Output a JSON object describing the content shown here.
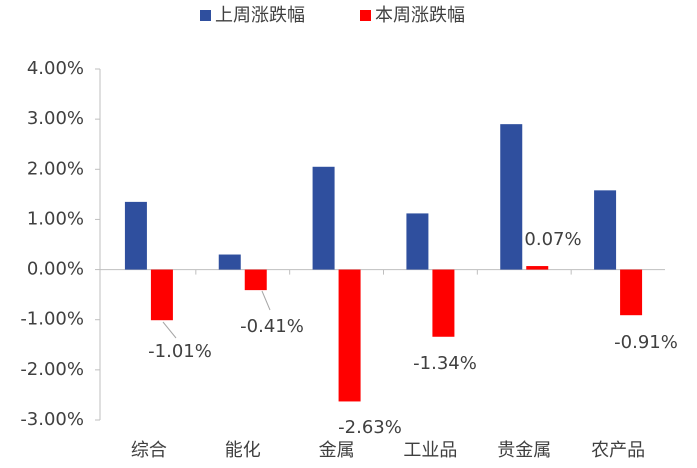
{
  "chart_data": {
    "type": "bar",
    "categories": [
      "综合",
      "能化",
      "金属",
      "工业品",
      "贵金属",
      "农产品"
    ],
    "series": [
      {
        "name": "上周涨跌幅",
        "color": "#2f4f9e",
        "values": [
          1.35,
          0.3,
          2.05,
          1.12,
          2.9,
          1.58
        ]
      },
      {
        "name": "本周涨跌幅",
        "color": "#ff0000",
        "values": [
          -1.01,
          -0.41,
          -2.63,
          -1.34,
          0.07,
          -0.91
        ],
        "value_labels": [
          "-1.01%",
          "-0.41%",
          "-2.63%",
          "-1.34%",
          "0.07%",
          "-0.91%"
        ]
      }
    ],
    "ylim": [
      -3,
      4
    ],
    "yticks": [
      {
        "value": -3,
        "label": "-3.00%"
      },
      {
        "value": -2,
        "label": "-2.00%"
      },
      {
        "value": -1,
        "label": "-1.00%"
      },
      {
        "value": 0,
        "label": "0.00%"
      },
      {
        "value": 1,
        "label": "1.00%"
      },
      {
        "value": 2,
        "label": "2.00%"
      },
      {
        "value": 3,
        "label": "3.00%"
      },
      {
        "value": 4,
        "label": "4.00%"
      }
    ],
    "legend": "top"
  }
}
